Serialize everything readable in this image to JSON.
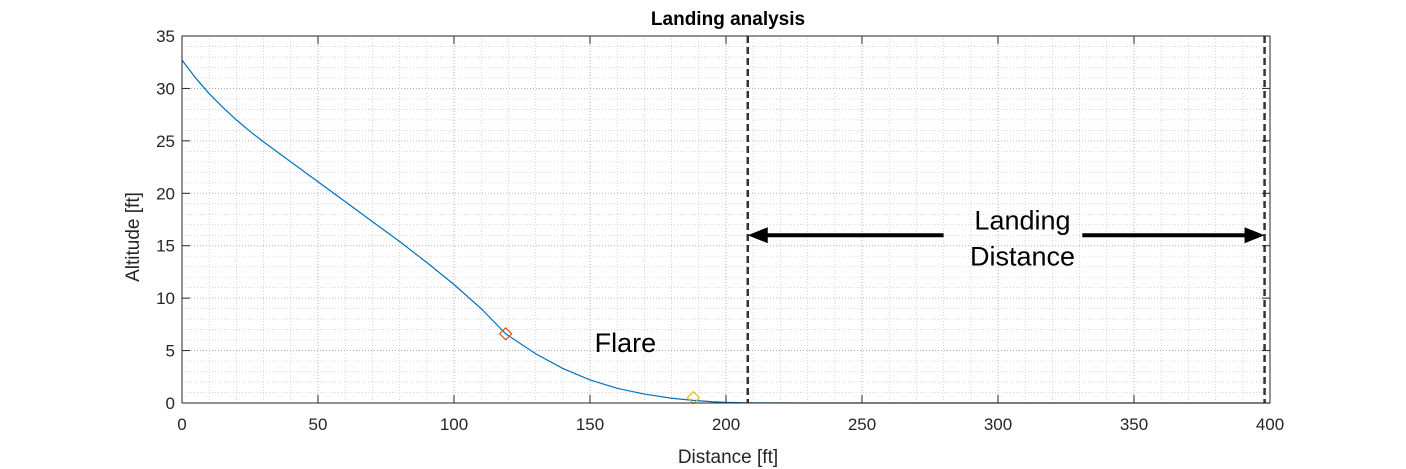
{
  "chart_data": {
    "type": "line",
    "title": "Landing analysis",
    "xlabel": "Distance [ft]",
    "ylabel": "Altitude [ft]",
    "xlim": [
      0,
      400
    ],
    "ylim": [
      0,
      35
    ],
    "xticks": [
      0,
      50,
      100,
      150,
      200,
      250,
      300,
      350,
      400
    ],
    "yticks": [
      0,
      5,
      10,
      15,
      20,
      25,
      30,
      35
    ],
    "grid": true,
    "minor_grid": true,
    "series": [
      {
        "color": "#0072BD",
        "x": [
          0,
          5,
          10,
          15,
          20,
          25,
          30,
          40,
          50,
          60,
          70,
          80,
          90,
          100,
          110,
          119,
          130,
          140,
          150,
          160,
          170,
          180,
          188,
          195,
          200,
          208,
          230,
          260,
          300,
          350,
          400
        ],
        "y": [
          32.7,
          31.0,
          29.5,
          28.2,
          27.0,
          25.9,
          24.9,
          23.0,
          21.1,
          19.2,
          17.3,
          15.4,
          13.4,
          11.3,
          9.0,
          6.6,
          4.7,
          3.3,
          2.2,
          1.4,
          0.85,
          0.45,
          0.25,
          0.12,
          0.06,
          0.02,
          0.0,
          0.0,
          0.0,
          0.0,
          0.0
        ]
      }
    ],
    "markers": [
      {
        "x": 119,
        "y": 6.6,
        "shape": "diamond",
        "color": "#D95319"
      },
      {
        "x": 188,
        "y": 0.5,
        "shape": "diamond",
        "color": "#EDB120"
      }
    ],
    "vertical_lines": [
      {
        "x": 208,
        "style": "dashed",
        "color": "#333333"
      },
      {
        "x": 398,
        "style": "dashed",
        "color": "#333333"
      }
    ],
    "annotations": [
      {
        "text": "Flare",
        "x": 163,
        "y": 5.7
      },
      {
        "text_lines": [
          "Landing",
          "Distance"
        ],
        "x": 309,
        "y": 15.8
      }
    ],
    "double_arrow": {
      "x_from": 208,
      "x_to": 398,
      "y": 16,
      "color": "#000000"
    }
  }
}
